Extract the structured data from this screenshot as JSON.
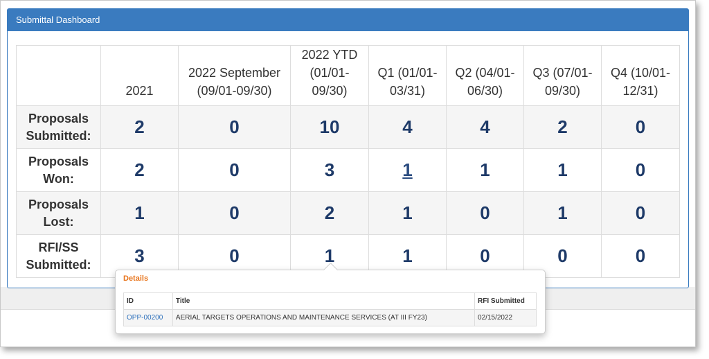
{
  "header": {
    "title": "Submittal Dashboard"
  },
  "table": {
    "columns": [
      "2021",
      "2022 September (09/01-09/30)",
      "2022 YTD (01/01-09/30)",
      "Q1 (01/01-03/31)",
      "Q2 (04/01-06/30)",
      "Q3 (07/01-09/30)",
      "Q4 (10/01-12/31)"
    ],
    "rows": [
      {
        "label": "Proposals Submitted:",
        "values": [
          "2",
          "0",
          "10",
          "4",
          "4",
          "2",
          "0"
        ]
      },
      {
        "label": "Proposals Won:",
        "values": [
          "2",
          "0",
          "3",
          "1",
          "1",
          "1",
          "0"
        ]
      },
      {
        "label": "Proposals Lost:",
        "values": [
          "1",
          "0",
          "2",
          "1",
          "0",
          "1",
          "0"
        ]
      },
      {
        "label": "RFI/SS Submitted:",
        "values": [
          "3",
          "0",
          "1",
          "1",
          "0",
          "0",
          "0"
        ]
      }
    ]
  },
  "details": {
    "title": "Details",
    "columns": [
      "ID",
      "Title",
      "RFI Submitted"
    ],
    "rows": [
      [
        "OPP-00200",
        "AERIAL TARGETS OPERATIONS AND MAINTENANCE SERVICES (AT III FY23)",
        "02/15/2022"
      ]
    ]
  }
}
